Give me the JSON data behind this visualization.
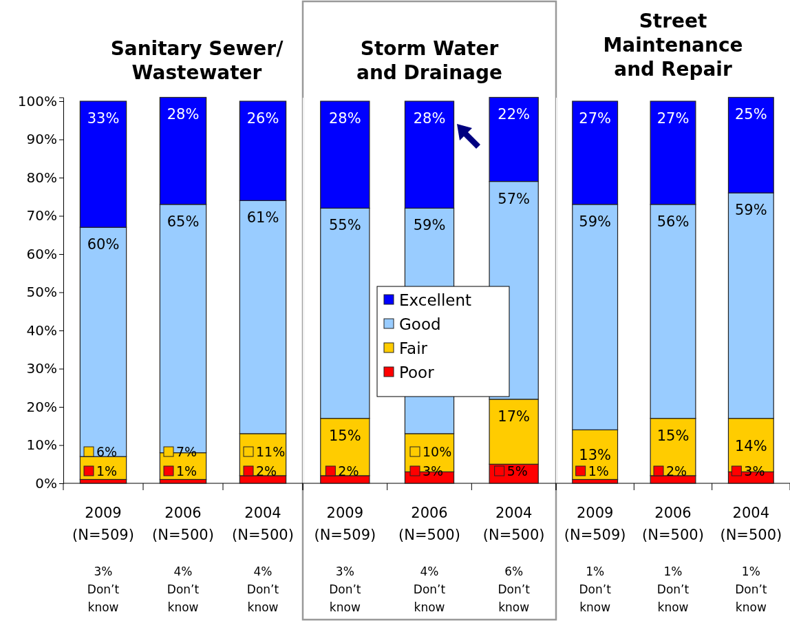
{
  "chart_data": [
    {
      "type": "bar",
      "stacked": true,
      "title": "Sanitary Sewer/ Wastewater",
      "categories": [
        "2009 (N=509)",
        "2006 (N=500)",
        "2004 (N=500)"
      ],
      "series": [
        {
          "color": "#ff0000",
          "values": [
            1,
            1,
            2
          ],
          "value_labels": [
            "1%",
            "1%",
            "2%"
          ]
        },
        {
          "color": "#ffcc00",
          "values": [
            6,
            7,
            11
          ],
          "value_labels": [
            "6%",
            "7%",
            "11%"
          ]
        },
        {
          "color": "#99ccff",
          "values": [
            60,
            65,
            61
          ],
          "value_labels": [
            "60%",
            "65%",
            "61%"
          ]
        },
        {
          "color": "#0000ff",
          "values": [
            33,
            28,
            26
          ],
          "value_labels": [
            "33%",
            "28%",
            "26%"
          ]
        }
      ],
      "ylim": [
        0,
        101
      ],
      "yticks": [
        {
          "value": 0,
          "label": "0%"
        },
        {
          "value": 10,
          "label": "10%"
        },
        {
          "value": 20,
          "label": "20%"
        },
        {
          "value": 30,
          "label": "30%"
        },
        {
          "value": 40,
          "label": "40%"
        },
        {
          "value": 50,
          "label": "50%"
        },
        {
          "value": 60,
          "label": "60%"
        },
        {
          "value": 70,
          "label": "70%"
        },
        {
          "value": 80,
          "label": "80%"
        },
        {
          "value": 90,
          "label": "90%"
        },
        {
          "value": 100,
          "label": "100%"
        }
      ],
      "legend": false,
      "annotations": [
        "3% Don’t know",
        "4% Don’t know",
        "4% Don’t know"
      ]
    },
    {
      "type": "bar",
      "stacked": true,
      "title": "Storm Water and Drainage",
      "categories": [
        "2009 (N=509)",
        "2006 (N=500)",
        "2004 (N=500)"
      ],
      "series": [
        {
          "name": "Poor",
          "color": "#ff0000",
          "values": [
            2,
            3,
            5
          ],
          "value_labels": [
            "2%",
            "3%",
            "5%"
          ]
        },
        {
          "name": "Fair",
          "color": "#ffcc00",
          "values": [
            15,
            10,
            17
          ],
          "value_labels": [
            "15%",
            "10%",
            "17%"
          ]
        },
        {
          "name": "Good",
          "color": "#99ccff",
          "values": [
            55,
            59,
            57
          ],
          "value_labels": [
            "55%",
            "59%",
            "57%"
          ]
        },
        {
          "name": "Excellent",
          "color": "#0000ff",
          "values": [
            28,
            28,
            22
          ],
          "value_labels": [
            "28%",
            "28%",
            "22%"
          ]
        }
      ],
      "ylim": [
        0,
        101
      ],
      "tick_labels": "x",
      "legend": "center",
      "annotations": [
        "3% Don’t know",
        "4% Don’t know",
        "6% Don’t know"
      ]
    },
    {
      "type": "bar",
      "stacked": true,
      "title": "Street Maintenance and Repair",
      "categories": [
        "2009 (N=509)",
        "2006 (N=500)",
        "2004 (N=500)"
      ],
      "series": [
        {
          "color": "#ff0000",
          "values": [
            1,
            2,
            3
          ],
          "value_labels": [
            "1%",
            "2%",
            "3%"
          ]
        },
        {
          "color": "#ffcc00",
          "values": [
            13,
            15,
            14
          ],
          "value_labels": [
            "13%",
            "15%",
            "14%"
          ]
        },
        {
          "color": "#99ccff",
          "values": [
            59,
            56,
            59
          ],
          "value_labels": [
            "59%",
            "56%",
            "59%"
          ]
        },
        {
          "color": "#0000ff",
          "values": [
            27,
            27,
            25
          ],
          "value_labels": [
            "27%",
            "27%",
            "25%"
          ]
        }
      ],
      "ylim": [
        0,
        101
      ],
      "tick_labels": "x",
      "legend": false,
      "annotations": [
        "1% Don’t know",
        "1% Don’t know",
        "1% Don’t know"
      ]
    }
  ]
}
